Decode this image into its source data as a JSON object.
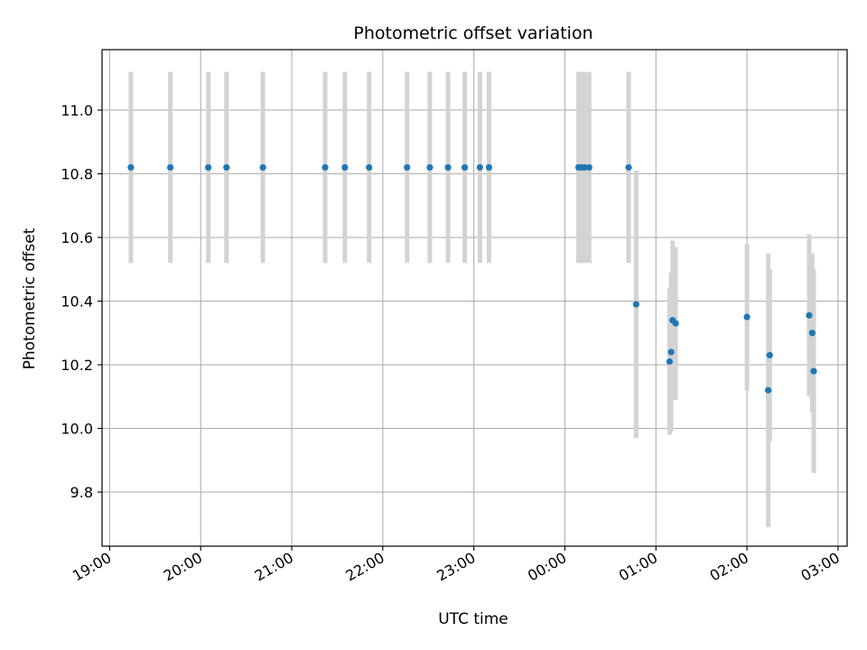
{
  "chart_data": {
    "type": "scatter",
    "title": "Photometric offset variation",
    "xlabel": "UTC time",
    "ylabel": "Photometric offset",
    "x_axis_type": "time",
    "x_range": [
      "2000-01-01T18:55:00",
      "2000-01-02T03:06:00"
    ],
    "xticks": [
      {
        "label": "19:00",
        "time": "2000-01-01T19:00:00"
      },
      {
        "label": "20:00",
        "time": "2000-01-01T20:00:00"
      },
      {
        "label": "21:00",
        "time": "2000-01-01T21:00:00"
      },
      {
        "label": "22:00",
        "time": "2000-01-01T22:00:00"
      },
      {
        "label": "23:00",
        "time": "2000-01-01T23:00:00"
      },
      {
        "label": "00:00",
        "time": "2000-01-02T00:00:00"
      },
      {
        "label": "01:00",
        "time": "2000-01-02T01:00:00"
      },
      {
        "label": "02:00",
        "time": "2000-01-02T02:00:00"
      },
      {
        "label": "03:00",
        "time": "2000-01-02T03:00:00"
      }
    ],
    "ylim": [
      9.63,
      11.19
    ],
    "yticks": [
      "9.8",
      "10.0",
      "10.2",
      "10.4",
      "10.6",
      "10.8",
      "11.0"
    ],
    "grid": true,
    "marker_color": "#1f77b4",
    "errorbar_color": "#d3d3d3",
    "points": [
      {
        "time": "2000-01-01T19:14:00",
        "y": 10.82,
        "err": 0.3
      },
      {
        "time": "2000-01-01T19:40:00",
        "y": 10.82,
        "err": 0.3
      },
      {
        "time": "2000-01-01T20:05:00",
        "y": 10.82,
        "err": 0.3
      },
      {
        "time": "2000-01-01T20:17:00",
        "y": 10.82,
        "err": 0.3
      },
      {
        "time": "2000-01-01T20:41:00",
        "y": 10.82,
        "err": 0.3
      },
      {
        "time": "2000-01-01T21:22:00",
        "y": 10.82,
        "err": 0.3
      },
      {
        "time": "2000-01-01T21:35:00",
        "y": 10.82,
        "err": 0.3
      },
      {
        "time": "2000-01-01T21:51:00",
        "y": 10.82,
        "err": 0.3
      },
      {
        "time": "2000-01-01T22:16:00",
        "y": 10.82,
        "err": 0.3
      },
      {
        "time": "2000-01-01T22:31:00",
        "y": 10.82,
        "err": 0.3
      },
      {
        "time": "2000-01-01T22:43:00",
        "y": 10.82,
        "err": 0.3
      },
      {
        "time": "2000-01-01T22:54:00",
        "y": 10.82,
        "err": 0.3
      },
      {
        "time": "2000-01-01T23:04:00",
        "y": 10.82,
        "err": 0.3
      },
      {
        "time": "2000-01-01T23:10:00",
        "y": 10.82,
        "err": 0.3
      },
      {
        "time": "2000-01-02T00:09:00",
        "y": 10.82,
        "err": 0.3
      },
      {
        "time": "2000-01-02T00:11:00",
        "y": 10.82,
        "err": 0.3
      },
      {
        "time": "2000-01-02T00:13:00",
        "y": 10.82,
        "err": 0.3
      },
      {
        "time": "2000-01-02T00:16:00",
        "y": 10.82,
        "err": 0.3
      },
      {
        "time": "2000-01-02T00:42:00",
        "y": 10.82,
        "err": 0.3
      },
      {
        "time": "2000-01-02T00:47:00",
        "y": 10.39,
        "err": 0.42
      },
      {
        "time": "2000-01-02T01:09:00",
        "y": 10.21,
        "err": 0.23
      },
      {
        "time": "2000-01-02T01:10:00",
        "y": 10.24,
        "err": 0.25
      },
      {
        "time": "2000-01-02T01:11:00",
        "y": 10.34,
        "err": 0.25
      },
      {
        "time": "2000-01-02T01:13:00",
        "y": 10.33,
        "err": 0.24
      },
      {
        "time": "2000-01-02T02:00:00",
        "y": 10.35,
        "err": 0.23
      },
      {
        "time": "2000-01-02T02:14:00",
        "y": 10.12,
        "err": 0.43
      },
      {
        "time": "2000-01-02T02:15:00",
        "y": 10.23,
        "err": 0.27
      },
      {
        "time": "2000-01-02T02:41:00",
        "y": 10.355,
        "err": 0.255
      },
      {
        "time": "2000-01-02T02:43:00",
        "y": 10.3,
        "err": 0.25
      },
      {
        "time": "2000-01-02T02:44:00",
        "y": 10.18,
        "err": 0.32
      }
    ]
  }
}
